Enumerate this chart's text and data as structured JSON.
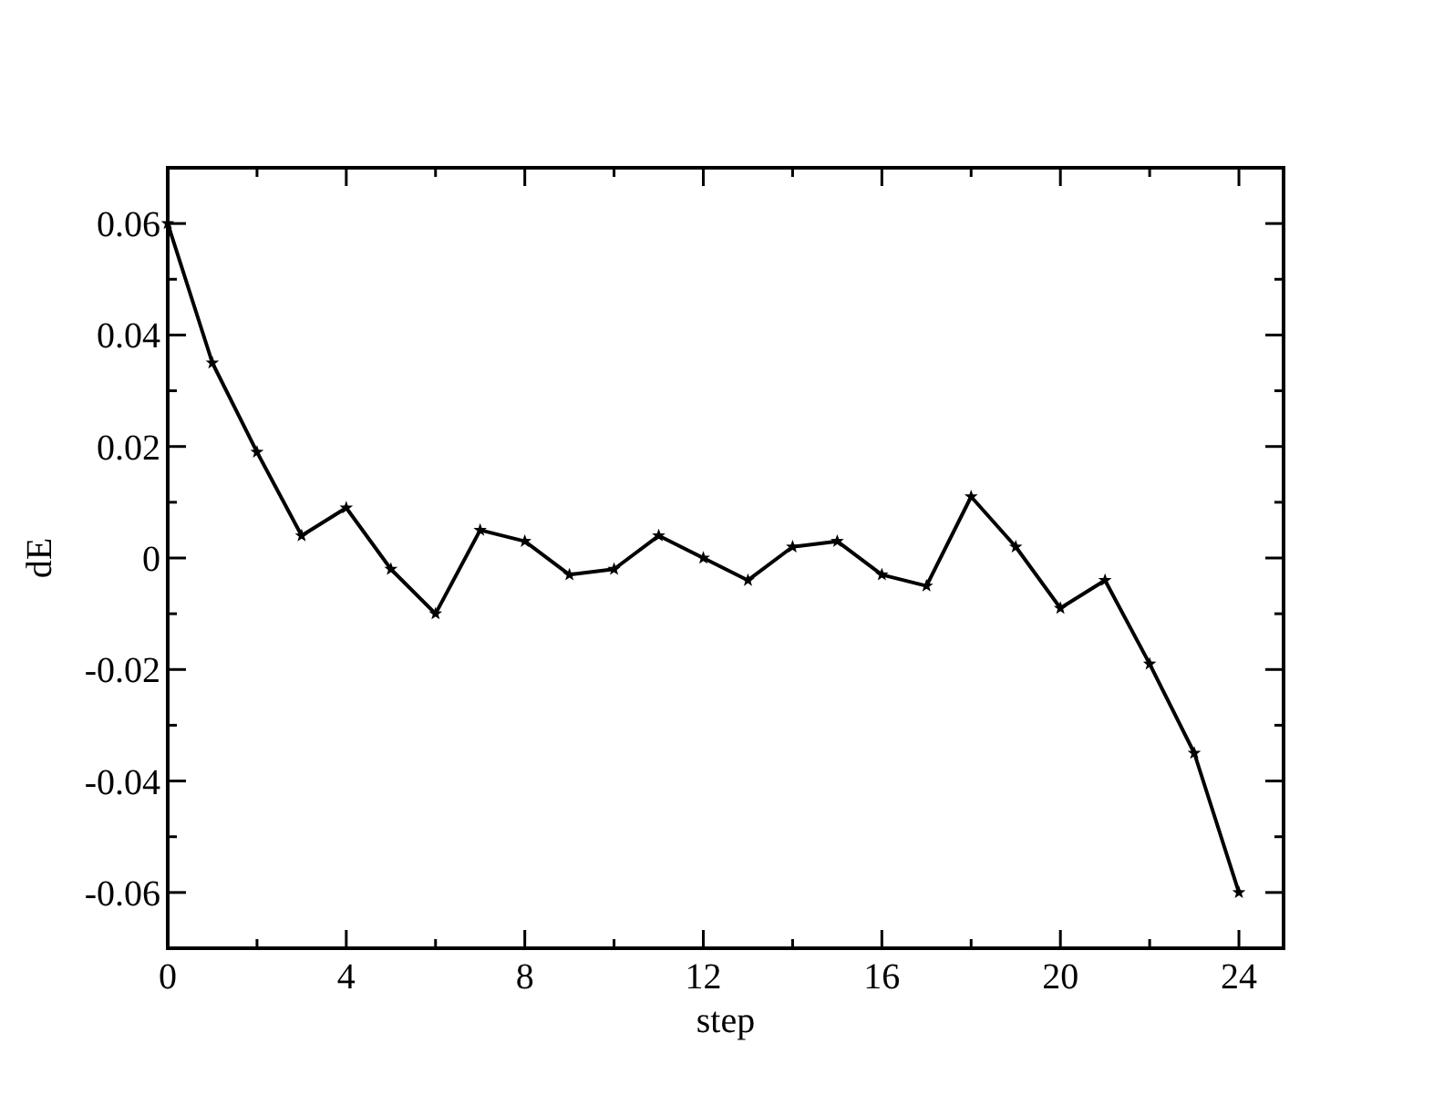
{
  "chart_data": {
    "type": "line",
    "xlabel": "step",
    "ylabel": "dE",
    "x": [
      0,
      1,
      2,
      3,
      4,
      5,
      6,
      7,
      8,
      9,
      10,
      11,
      12,
      13,
      14,
      15,
      16,
      17,
      18,
      19,
      20,
      21,
      22,
      23,
      24
    ],
    "series": [
      {
        "color": "#000000",
        "values": [
          0.06,
          0.035,
          0.019,
          0.004,
          0.009,
          -0.002,
          -0.01,
          0.005,
          0.003,
          -0.003,
          -0.002,
          0.004,
          0,
          -0.004,
          0.002,
          0.003,
          -0.003,
          -0.005,
          0.011,
          0.002,
          -0.009,
          -0.004,
          -0.019,
          -0.035,
          -0.06
        ]
      }
    ],
    "xlim": [
      0,
      25
    ],
    "xticks": [
      0,
      {
        "value": 2,
        "label": null
      },
      4,
      {
        "value": 6,
        "label": null
      },
      8,
      {
        "value": 10,
        "label": null
      },
      12,
      {
        "value": 14,
        "label": null
      },
      16,
      {
        "value": 18,
        "label": null
      },
      20,
      {
        "value": 22,
        "label": null
      },
      24
    ],
    "ylim": [
      -0.07,
      0.07
    ],
    "yticks": [
      -0.06,
      {
        "value": -0.05,
        "label": null
      },
      -0.04,
      {
        "value": -0.03,
        "label": null
      },
      -0.02,
      {
        "value": -0.01,
        "label": null
      },
      0,
      {
        "value": 0.01,
        "label": null
      },
      0.02,
      {
        "value": 0.03,
        "label": null
      },
      0.04,
      {
        "value": 0.05,
        "label": null
      },
      0.06
    ],
    "marker": "star",
    "line_style": "solid",
    "grid": false
  }
}
